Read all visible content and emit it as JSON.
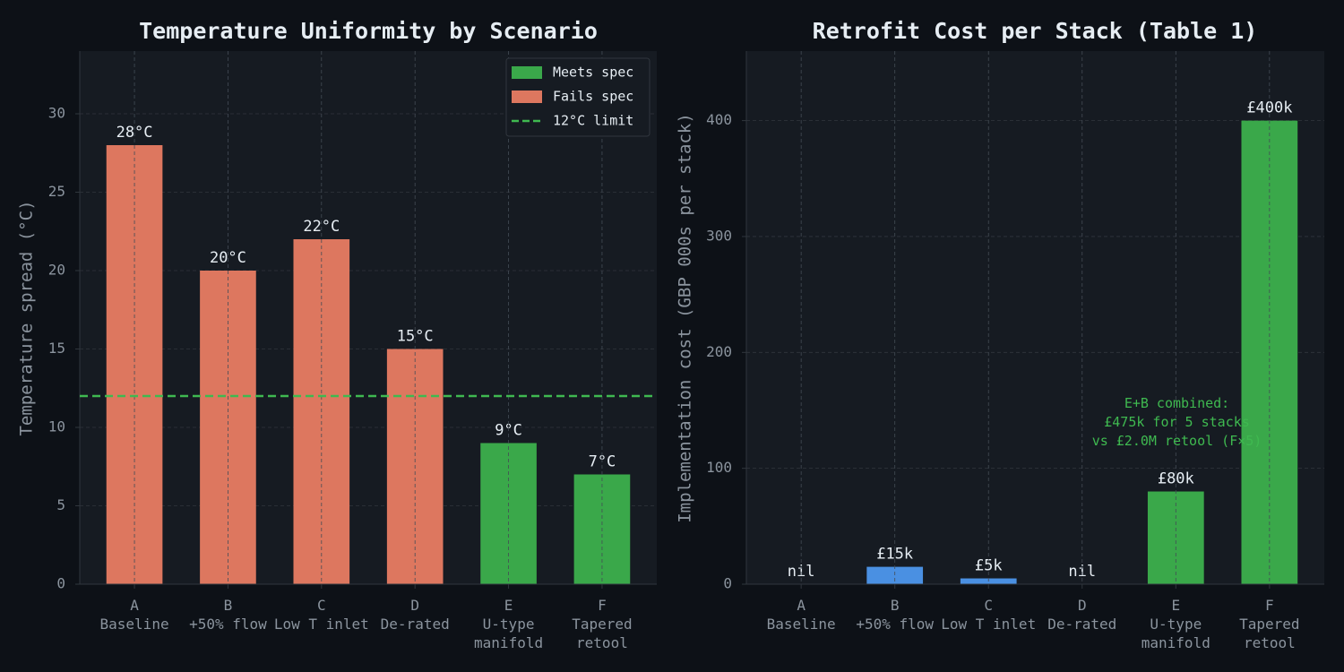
{
  "chart_data": [
    {
      "type": "bar",
      "title": "Temperature Uniformity by Scenario",
      "ylabel": "Temperature spread (°C)",
      "categories": [
        "A\nBaseline",
        "B\n+50% flow",
        "C\nLow T inlet",
        "D\nDe-rated",
        "E\nU-type\nmanifold",
        "F\nTapered\nretool"
      ],
      "series": [
        {
          "name": "Meets spec",
          "color": "#3aa84a",
          "values": [
            null,
            null,
            null,
            null,
            9,
            7
          ],
          "value_labels": [
            null,
            null,
            null,
            null,
            "9°C",
            "7°C"
          ]
        },
        {
          "name": "Fails spec",
          "color": "#dd775f",
          "values": [
            28,
            20,
            22,
            15,
            null,
            null
          ],
          "value_labels": [
            "28°C",
            "20°C",
            "22°C",
            "15°C",
            null,
            null
          ]
        }
      ],
      "hline": {
        "value": 12,
        "label": "12°C limit",
        "color": "#3fb950"
      },
      "ylim": [
        0,
        34
      ],
      "yticks": [
        0,
        5,
        10,
        15,
        20,
        25,
        30
      ],
      "grid": true,
      "legend": "upper right"
    },
    {
      "type": "bar",
      "title": "Retrofit Cost per Stack (Table 1)",
      "ylabel": "Implementation cost (GBP 000s per stack)",
      "categories": [
        "A\nBaseline",
        "B\n+50% flow",
        "C\nLow T inlet",
        "D\nDe-rated",
        "E\nU-type\nmanifold",
        "F\nTapered\nretool"
      ],
      "values": [
        0,
        15,
        5,
        0,
        80,
        400
      ],
      "value_labels": [
        "nil",
        "£15k",
        "£5k",
        "nil",
        "£80k",
        "£400k"
      ],
      "colors": [
        "#8b949e",
        "#4a90e2",
        "#4a90e2",
        "#8b949e",
        "#3aa84a",
        "#3aa84a"
      ],
      "annotation": {
        "text": "E+B combined:\n£475k for 5 stacks\nvs £2.0M retool (F×5)",
        "color": "#3fb950"
      },
      "ylim": [
        0,
        460
      ],
      "yticks": [
        0,
        100,
        200,
        300,
        400
      ],
      "grid": true
    }
  ]
}
